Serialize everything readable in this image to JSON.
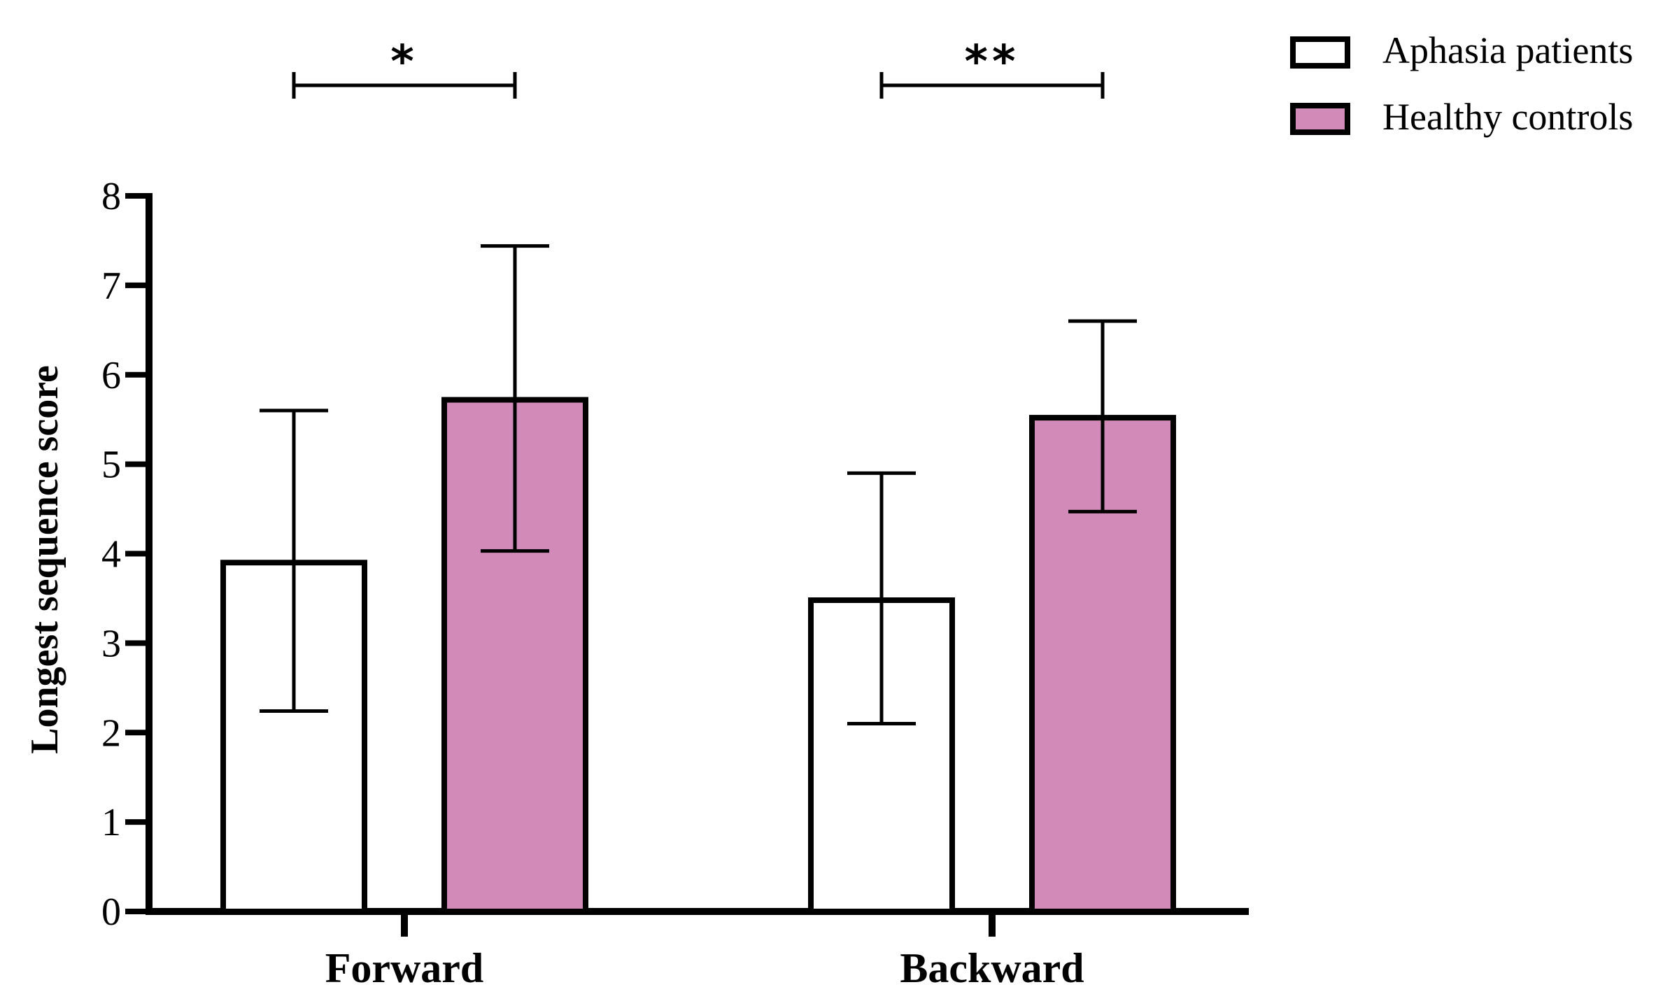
{
  "chart_data": {
    "type": "bar",
    "title": "",
    "xlabel": "",
    "ylabel": "Longest sequence score",
    "ylim": [
      0,
      8
    ],
    "yticks": [
      0,
      1,
      2,
      3,
      4,
      5,
      6,
      7,
      8
    ],
    "grid": false,
    "legend_position": "top-right",
    "categories": [
      "Forward",
      "Backward"
    ],
    "series": [
      {
        "name": "Aphasia patients",
        "color": "#ffffff",
        "values": [
          3.9,
          3.48
        ],
        "error_low": [
          2.24,
          2.1
        ],
        "error_high": [
          5.6,
          4.9
        ]
      },
      {
        "name": "Healthy controls",
        "color": "#d28bb8",
        "values": [
          5.72,
          5.52
        ],
        "error_low": [
          4.03,
          4.47
        ],
        "error_high": [
          7.44,
          6.6
        ]
      }
    ],
    "significance": [
      {
        "category": "Forward",
        "label": "*"
      },
      {
        "category": "Backward",
        "label": "**"
      }
    ]
  }
}
